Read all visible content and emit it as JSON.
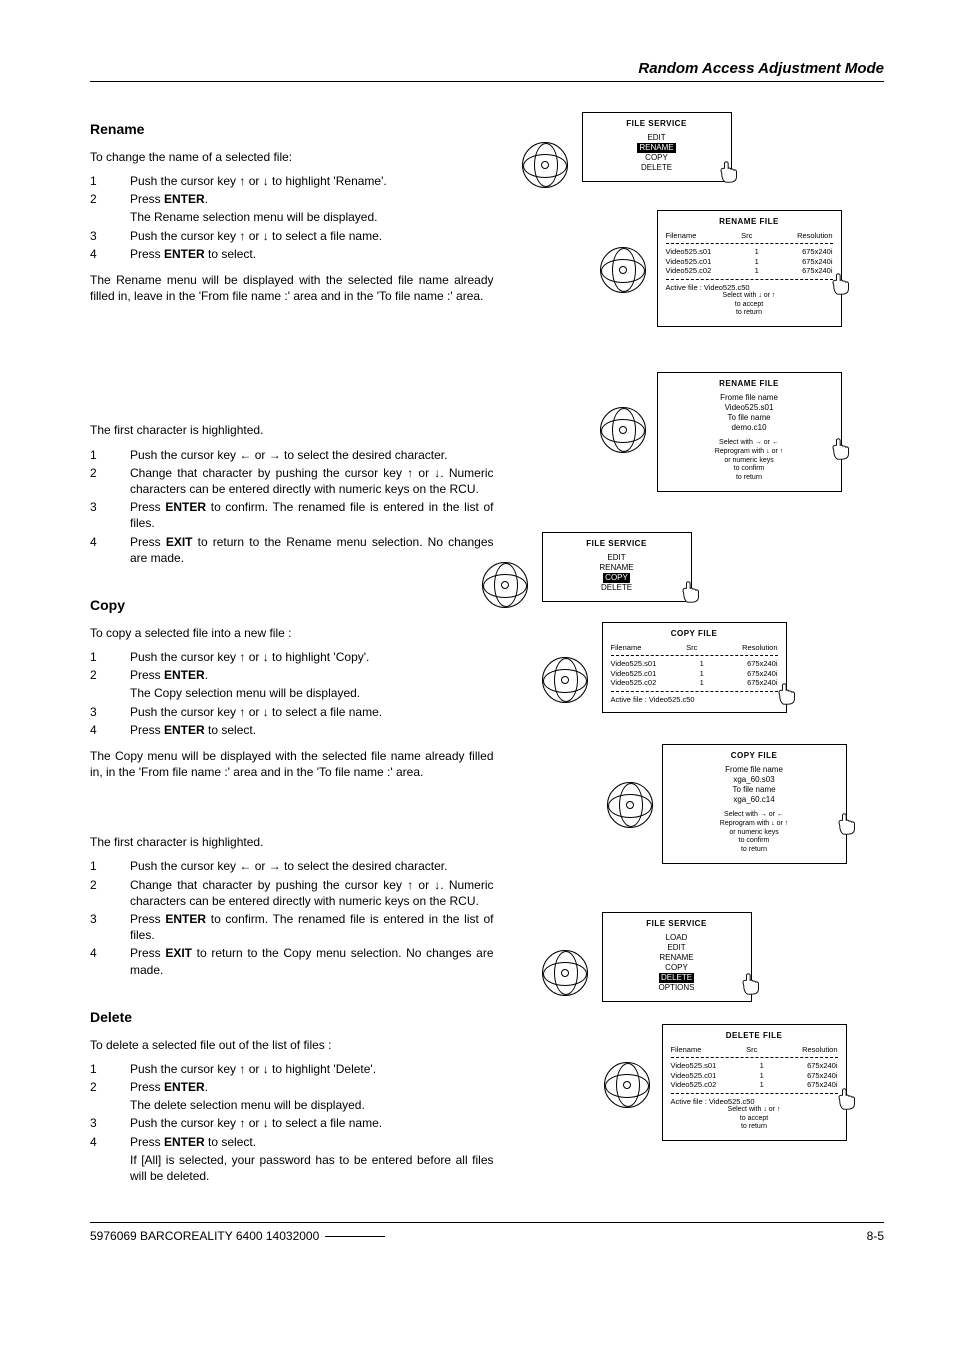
{
  "header": {
    "title": "Random Access Adjustment Mode"
  },
  "rename": {
    "heading": "Rename",
    "intro": "To change the name of a selected file:",
    "steps1": [
      "Push the cursor key ↑ or ↓ to highlight 'Rename'.",
      "Press ENTER.",
      "The Rename selection menu will be displayed.",
      "Push the cursor key ↑ or ↓ to select a file name.",
      "Press ENTER to select."
    ],
    "steps1_nums": [
      "1",
      "2",
      "",
      "3",
      "4"
    ],
    "para1": "The Rename menu will be displayed with the selected file name already filled in, leave in the 'From file name :' area and in the 'To file name :' area.",
    "para2": "The first character is highlighted.",
    "steps2": [
      "Push the cursor key ← or → to select the desired character.",
      "Change that character by pushing the cursor key ↑ or ↓. Numeric characters can be entered directly with numeric keys on the RCU.",
      "Press ENTER to confirm.  The renamed file is entered in the list of files.",
      "Press EXIT to return to the Rename menu selection.  No changes are made."
    ],
    "steps2_nums": [
      "1",
      "2",
      "3",
      "4"
    ]
  },
  "copy": {
    "heading": "Copy",
    "intro": "To copy a selected file into a new file :",
    "steps1": [
      "Push the cursor key ↑ or ↓ to highlight 'Copy'.",
      "Press ENTER.",
      "The Copy selection menu will be displayed.",
      "Push the cursor key ↑ or ↓ to select a file name.",
      "Press ENTER to select."
    ],
    "steps1_nums": [
      "1",
      "2",
      "",
      "3",
      "4"
    ],
    "para1": "The Copy menu will be displayed with the selected file name already filled in, in the 'From file name :' area and in the 'To file name :' area.",
    "para2": "The first character is highlighted.",
    "steps2": [
      "Push the cursor key ← or → to select the desired character.",
      "Change that character by pushing the cursor key ↑ or ↓. Numeric characters can be entered directly with numeric keys on the RCU.",
      "Press ENTER to confirm.  The renamed file is entered in the list of files.",
      "Press EXIT to return to the Copy menu selection.  No changes are made."
    ],
    "steps2_nums": [
      "1",
      "2",
      "3",
      "4"
    ]
  },
  "delete": {
    "heading": "Delete",
    "intro": "To delete a selected file out of the list of files :",
    "steps1": [
      "Push the cursor key ↑ or ↓ to highlight 'Delete'.",
      "Press ENTER.",
      "The delete selection menu will be displayed.",
      "Push the cursor key ↑ or ↓ to select a file name.",
      "Press ENTER to select.",
      "If [All] is selected, your password has to be entered before all files will be deleted."
    ],
    "steps1_nums": [
      "1",
      "2",
      "",
      "3",
      "4",
      ""
    ]
  },
  "menus": {
    "file_service_rename": {
      "title": "FILE SERVICE",
      "items": [
        "EDIT",
        "RENAME",
        "COPY",
        "DELETE"
      ],
      "highlight_index": 1
    },
    "rename_file_list": {
      "title": "RENAME FILE",
      "headers": [
        "Filename",
        "Src",
        "Resolution"
      ],
      "rows": [
        [
          "Video525.s01",
          "1",
          "675x240i"
        ],
        [
          "Video525.c01",
          "1",
          "675x240i"
        ],
        [
          "Video525.c02",
          "1",
          "675x240i"
        ]
      ],
      "active": "Active file : Video525.c50",
      "foot": [
        "Select with ↓ or ↑",
        "<ENTER> to accept",
        "<EXIT> to return"
      ]
    },
    "rename_file_edit": {
      "title": "RENAME FILE",
      "lines": [
        "Frome file name",
        "Video525.s01",
        "To file name",
        "demo.c10"
      ],
      "foot": [
        "Select with → or ←",
        "Reprogram with ↓ or ↑",
        "or numeric keys",
        "<ENTER> to confirm",
        "<EXIT> to return"
      ]
    },
    "file_service_copy": {
      "title": "FILE SERVICE",
      "items": [
        "EDIT",
        "RENAME",
        "COPY",
        "DELETE"
      ],
      "highlight_index": 2
    },
    "copy_file_list": {
      "title": "COPY FILE",
      "headers": [
        "Filename",
        "Src",
        "Resolution"
      ],
      "rows": [
        [
          "Video525.s01",
          "1",
          "675x240i"
        ],
        [
          "Video525.c01",
          "1",
          "675x240i"
        ],
        [
          "Video525.c02",
          "1",
          "675x240i"
        ]
      ],
      "active": "Active file : Video525.c50",
      "foot": []
    },
    "copy_file_edit": {
      "title": "COPY FILE",
      "lines": [
        "Frome file name",
        "xga_60.s03",
        "To file name",
        "xga_60.c14"
      ],
      "foot": [
        "Select with → or ←",
        "Reprogram with ↓ or ↑",
        "or numeric keys",
        "<ENTER> to confirm",
        "<EXIT> to return"
      ]
    },
    "file_service_delete": {
      "title": "FILE SERVICE",
      "items": [
        "LOAD",
        "EDIT",
        "RENAME",
        "COPY",
        "DELETE",
        "OPTIONS"
      ],
      "highlight_index": 4
    },
    "delete_file_list": {
      "title": "DELETE FILE",
      "headers": [
        "Filename",
        "Src",
        "Resolution"
      ],
      "rows": [
        [
          "Video525.s01",
          "1",
          "675x240i"
        ],
        [
          "Video525.c01",
          "1",
          "675x240i"
        ],
        [
          "Video525.c02",
          "1",
          "675x240i"
        ]
      ],
      "active": "Active file : Video525.c50",
      "foot": [
        "Select with ↓ or ↑",
        "<ENTER> to accept",
        "<EXIT> to return"
      ]
    }
  },
  "footer": {
    "left": "5976069 BARCOREALITY 6400 14032000",
    "right": "8-5"
  }
}
